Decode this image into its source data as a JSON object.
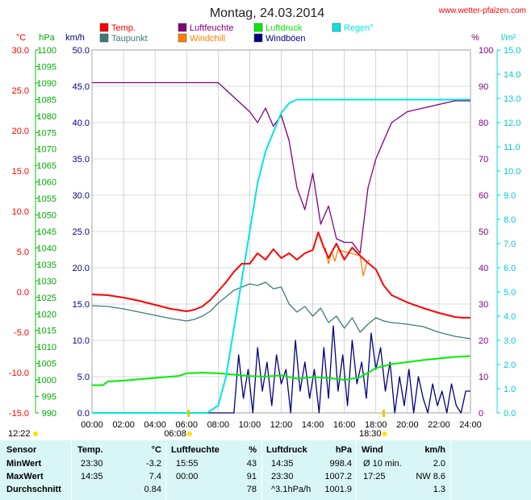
{
  "header": {
    "title": "Montag, 24.03.2014",
    "website": "www.wetter-pfalzen.com"
  },
  "axis_units": {
    "temp": "°C",
    "pressure": "hPa",
    "wind": "km/h",
    "humidity": "%",
    "rain": "l/m²"
  },
  "legend": [
    {
      "label": "Temp.",
      "color": "#ff0000"
    },
    {
      "label": "Luftfeuchte",
      "color": "#800080"
    },
    {
      "label": "Luftdruck",
      "color": "#00ee00"
    },
    {
      "label": "Regen°",
      "color": "#00e5e5"
    },
    {
      "label": "Taupunkt",
      "color": "#3c7a7a"
    },
    {
      "label": "Windchill",
      "color": "#ff8000"
    },
    {
      "label": "Windböen",
      "color": "#000080"
    }
  ],
  "sun_markers": {
    "sunrise": "06:08",
    "sunset": "18:30",
    "left_label": "12:22"
  },
  "chart_data": {
    "type": "line",
    "x_ticks": [
      "00:00",
      "02:00",
      "04:00",
      "06:00",
      "08:00",
      "10:00",
      "12:00",
      "14:00",
      "16:00",
      "18:00",
      "20:00",
      "22:00",
      "24:00"
    ],
    "xlim": [
      0,
      24
    ],
    "axes": {
      "temp": {
        "ticks": [
          "30.0",
          "25.0",
          "20.0",
          "15.0",
          "10.0",
          "5.0",
          "0.0",
          "-5.0",
          "-10.0",
          "-15.0"
        ],
        "lim": [
          -15,
          30
        ],
        "color": "#ff0000"
      },
      "pressure": {
        "ticks": [
          "1100",
          "1095",
          "1090",
          "1085",
          "1080",
          "1075",
          "1070",
          "1065",
          "1060",
          "1055",
          "1050",
          "1045",
          "1040",
          "1035",
          "1030",
          "1025",
          "1020",
          "1015",
          "1010",
          "1005",
          "1000",
          "995",
          "990"
        ],
        "lim": [
          990,
          1100
        ],
        "color": "#00aa00"
      },
      "wind": {
        "ticks": [
          "50.0",
          "45.0",
          "40.0",
          "35.0",
          "30.0",
          "25.0",
          "20.0",
          "15.0",
          "10.0",
          "5.0",
          "0.0"
        ],
        "lim": [
          0,
          50
        ],
        "color": "#000080"
      },
      "humidity": {
        "ticks": [
          "100",
          "90",
          "80",
          "70",
          "60",
          "50",
          "40",
          "30",
          "20",
          "10",
          "0"
        ],
        "lim": [
          0,
          100
        ],
        "color": "#800080"
      },
      "rain": {
        "ticks": [
          "15.0",
          "14.0",
          "13.0",
          "12.0",
          "11.0",
          "10.0",
          "9.0",
          "8.0",
          "7.0",
          "6.0",
          "5.0",
          "4.0",
          "3.0",
          "2.0",
          "1.0",
          "0.0"
        ],
        "lim": [
          0,
          15
        ],
        "color": "#00cccc"
      }
    },
    "series": [
      {
        "name": "Temp.",
        "axis": "temp",
        "color": "#ff0000",
        "x": [
          0,
          1,
          2,
          3,
          4,
          5,
          6,
          6.5,
          7,
          7.5,
          8,
          8.5,
          9,
          9.5,
          10,
          10.5,
          11,
          11.5,
          12,
          12.5,
          13,
          13.5,
          14,
          14.35,
          14.7,
          15,
          15.5,
          16,
          16.5,
          17,
          17.5,
          18,
          18.5,
          19,
          20,
          21,
          22,
          23,
          23.5,
          24
        ],
        "y": [
          -0.3,
          -0.4,
          -0.7,
          -1.1,
          -1.6,
          -2.1,
          -2.4,
          -2.2,
          -1.8,
          -1.0,
          0.1,
          1.2,
          2.5,
          3.5,
          3.5,
          4.8,
          4.0,
          5.3,
          4.2,
          4.8,
          4.0,
          4.8,
          5.2,
          7.4,
          5.5,
          4.2,
          6.0,
          4.0,
          5.5,
          4.5,
          3.6,
          2.8,
          0.8,
          -0.4,
          -1.3,
          -2.0,
          -2.6,
          -3.1,
          -3.2,
          -3.2
        ]
      },
      {
        "name": "Taupunkt",
        "axis": "temp",
        "color": "#3c7a7a",
        "x": [
          0,
          1,
          2,
          3,
          4,
          5,
          6,
          6.5,
          7,
          7.5,
          8,
          8.5,
          9,
          9.5,
          10,
          10.5,
          11,
          11.5,
          12,
          12.5,
          13,
          13.5,
          14,
          14.5,
          15,
          15.5,
          16,
          16.5,
          17,
          17.5,
          18,
          18.5,
          19,
          20,
          21,
          22,
          23,
          24
        ],
        "y": [
          -1.7,
          -1.8,
          -2.1,
          -2.5,
          -2.9,
          -3.3,
          -3.6,
          -3.4,
          -3.0,
          -2.4,
          -1.4,
          -0.6,
          0.2,
          0.6,
          1.0,
          0.8,
          1.2,
          0.4,
          0.6,
          -1.5,
          -2.5,
          -1.8,
          -3.0,
          -2.0,
          -3.8,
          -3.0,
          -4.5,
          -3.2,
          -5.0,
          -4.0,
          -3.2,
          -3.6,
          -3.8,
          -4.0,
          -4.3,
          -5.0,
          -5.5,
          -5.8
        ]
      },
      {
        "name": "Luftfeuchte",
        "axis": "humidity",
        "color": "#800080",
        "x": [
          0,
          2,
          4,
          6,
          7,
          8,
          8.5,
          9,
          9.5,
          10,
          10.5,
          11,
          11.5,
          12,
          12.5,
          13,
          13.5,
          14,
          14.5,
          15,
          15.5,
          16,
          16.5,
          17,
          17.5,
          18,
          18.5,
          19,
          20,
          21,
          22,
          23,
          24
        ],
        "y": [
          91,
          91,
          91,
          91,
          91,
          91,
          89,
          87,
          85,
          83,
          80,
          84,
          79,
          82,
          75,
          62,
          56,
          66,
          52,
          57,
          48,
          47,
          47,
          44,
          62,
          70,
          75,
          80,
          83,
          84,
          85,
          86,
          86
        ]
      },
      {
        "name": "Luftdruck",
        "axis": "pressure",
        "color": "#00ee00",
        "x": [
          0,
          0.7,
          1,
          2,
          3,
          4,
          5,
          5.5,
          6,
          7,
          8,
          9,
          10,
          11,
          12,
          13,
          14,
          15,
          16,
          17,
          17.5,
          18,
          19,
          20,
          21,
          22,
          23,
          24
        ],
        "y": [
          998.4,
          998.4,
          999.5,
          999.8,
          1000.2,
          1000.6,
          1001.0,
          1001.2,
          1002.0,
          1002.2,
          1002.0,
          1001.6,
          1001.2,
          1001.0,
          1001.4,
          1000.4,
          1000.8,
          1000.6,
          1000.0,
          1000.8,
          1002.2,
          1003.6,
          1004.8,
          1005.4,
          1006.0,
          1006.5,
          1007.0,
          1007.2
        ]
      },
      {
        "name": "Regen°",
        "axis": "rain",
        "color": "#00e5e5",
        "x": [
          0,
          6,
          7.3,
          8,
          8.5,
          9,
          9.5,
          10,
          10.5,
          11,
          11.5,
          12,
          12.5,
          13,
          14,
          16,
          18,
          20,
          22,
          24
        ],
        "y": [
          0,
          0,
          0,
          0.3,
          1.5,
          3.5,
          5.5,
          7.5,
          9.5,
          10.8,
          11.6,
          12.4,
          12.8,
          12.95,
          12.95,
          12.95,
          12.95,
          12.95,
          12.95,
          12.95
        ]
      },
      {
        "name": "Windchill",
        "axis": "temp",
        "color": "#ff8000",
        "x": [
          14.8,
          15.0,
          15.2,
          15.4,
          15.6,
          17.0,
          17.2,
          17.4,
          17.6
        ],
        "y": [
          5.5,
          3.5,
          5.0,
          3.8,
          5.2,
          4.5,
          2.0,
          3.5,
          4.0
        ]
      },
      {
        "name": "Windböen",
        "axis": "wind",
        "color": "#000080",
        "x": [
          0,
          8,
          9,
          9.3,
          9.6,
          9.9,
          10.2,
          10.5,
          10.8,
          11.1,
          11.4,
          11.7,
          12.0,
          12.3,
          12.6,
          12.9,
          13.2,
          13.5,
          13.8,
          14.1,
          14.4,
          14.7,
          15.0,
          15.3,
          15.6,
          15.9,
          16.2,
          16.5,
          16.8,
          17.1,
          17.4,
          17.7,
          18.0,
          18.3,
          18.6,
          18.9,
          19.2,
          19.5,
          19.8,
          20.1,
          20.4,
          20.7,
          21.0,
          21.3,
          21.6,
          21.9,
          22.2,
          22.5,
          22.8,
          23.1,
          23.4,
          23.7,
          24
        ],
        "y": [
          0,
          0,
          0,
          8,
          2,
          6,
          0,
          9,
          3,
          7,
          1,
          8,
          4,
          6,
          0,
          10,
          3,
          7,
          2,
          6,
          0,
          9,
          2,
          12,
          3,
          8,
          1,
          10,
          4,
          7,
          2,
          11,
          6,
          9,
          3,
          7,
          0,
          5,
          1,
          6,
          0,
          5,
          2,
          0,
          4,
          1,
          3,
          0,
          4,
          1,
          0,
          3,
          3
        ]
      }
    ]
  },
  "stats": {
    "headers": {
      "sensor": "Sensor",
      "temp": "Temp.",
      "temp_unit": "°C",
      "humidity": "Luftfeuchte",
      "humidity_unit": "%",
      "pressure": "Luftdruck",
      "pressure_unit": "hPa",
      "wind": "Wind",
      "wind_unit": "km/h"
    },
    "rows": [
      {
        "label": "MinWert",
        "temp_time": "23:30",
        "temp_val": "-3.2",
        "hum_time": "15:55",
        "hum_val": "43",
        "press_time": "14:35",
        "press_val": "998.4",
        "wind_time": "Ø 10 min.",
        "wind_val": "2.0"
      },
      {
        "label": "MaxWert",
        "temp_time": "14:35",
        "temp_val": "7.4",
        "hum_time": "00:00",
        "hum_val": "91",
        "press_time": "23:30",
        "press_val": "1007.2",
        "wind_time": "17:25",
        "wind_val": "NW 8.6"
      },
      {
        "label": "Durchschnitt",
        "temp_time": "",
        "temp_val": "0.84",
        "hum_time": "",
        "hum_val": "78",
        "press_time": "^3.1hPa/h",
        "press_val": "1001.9",
        "wind_time": "",
        "wind_val": "1.3"
      }
    ]
  }
}
